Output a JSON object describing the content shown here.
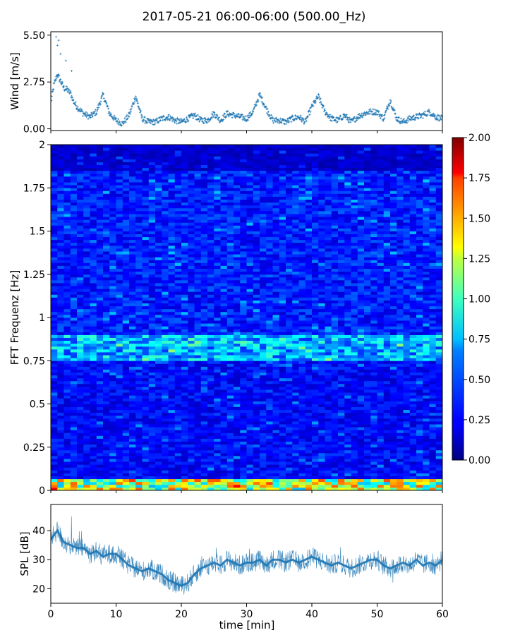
{
  "title": "2017-05-21 06:00-06:00 (500.00_Hz)",
  "chart_data": [
    {
      "panel": "wind",
      "type": "scatter",
      "ylabel": "Wind [m/s]",
      "ylim": [
        -0.1,
        5.7
      ],
      "yticks": [
        0.0,
        2.75,
        5.5
      ],
      "ytick_labels": [
        "0.00",
        "2.75",
        "5.50"
      ],
      "xlim": [
        0,
        60
      ],
      "color": "#1f77b4",
      "marker": "+",
      "x": [
        0,
        0.5,
        1,
        1.5,
        2,
        2.5,
        3,
        3.5,
        4,
        5,
        6,
        7,
        8,
        9,
        10,
        11,
        12,
        13,
        14,
        15,
        16,
        17,
        18,
        19,
        20,
        21,
        22,
        23,
        24,
        25,
        26,
        27,
        28,
        29,
        30,
        31,
        32,
        33,
        34,
        35,
        36,
        37,
        38,
        39,
        40,
        41,
        42,
        43,
        44,
        45,
        46,
        47,
        48,
        49,
        50,
        51,
        52,
        53,
        54,
        55,
        56,
        57,
        58,
        59,
        60
      ],
      "y": [
        1.6,
        2.6,
        3.2,
        2.8,
        2.4,
        2.3,
        2.1,
        1.6,
        1.3,
        0.9,
        0.7,
        1.0,
        2.0,
        0.9,
        0.5,
        0.3,
        0.8,
        1.9,
        0.6,
        0.4,
        0.4,
        0.6,
        0.7,
        0.5,
        0.4,
        0.6,
        0.8,
        0.5,
        0.5,
        0.9,
        0.5,
        0.9,
        0.8,
        0.7,
        0.6,
        1.0,
        2.0,
        1.2,
        0.5,
        0.5,
        0.4,
        0.6,
        0.7,
        0.4,
        1.3,
        1.9,
        1.0,
        0.6,
        0.5,
        0.8,
        0.4,
        0.7,
        0.9,
        1.0,
        1.0,
        0.6,
        1.7,
        0.6,
        0.4,
        0.6,
        0.7,
        0.8,
        1.0,
        0.7,
        0.6
      ]
    },
    {
      "panel": "spectrogram",
      "type": "heatmap",
      "ylabel": "FFT Frequenz [Hz]",
      "ylim": [
        0,
        2
      ],
      "yticks": [
        "0",
        "0.25",
        "0.5",
        "0.75",
        "1",
        "1.25",
        "1.5",
        "1.75",
        "2"
      ],
      "xlim": [
        0,
        60
      ],
      "colormap": "jet",
      "colorbar": {
        "range": [
          0.0,
          2.0
        ],
        "ticks": [
          "0.00",
          "0.25",
          "0.50",
          "0.75",
          "1.00",
          "1.25",
          "1.50",
          "1.75",
          "2.00"
        ]
      },
      "bands": [
        {
          "freq_range": [
            0.0,
            0.06
          ],
          "level": 1.1
        },
        {
          "freq_range": [
            0.75,
            0.9
          ],
          "level": 0.6
        },
        {
          "freq_range": [
            0.9,
            1.85
          ],
          "level": 0.3
        },
        {
          "freq_range": [
            0.06,
            0.75
          ],
          "level": 0.25
        }
      ]
    },
    {
      "panel": "spl",
      "type": "line",
      "ylabel": "SPL [dB]",
      "xlabel": "time [min]",
      "ylim": [
        15,
        49
      ],
      "yticks": [
        20,
        30,
        40
      ],
      "xlim": [
        0,
        60
      ],
      "xticks": [
        0,
        10,
        20,
        30,
        40,
        50,
        60
      ],
      "color": "#1f77b4",
      "x": [
        0,
        1,
        2,
        3,
        4,
        5,
        6,
        7,
        8,
        9,
        10,
        11,
        12,
        13,
        14,
        15,
        16,
        17,
        18,
        19,
        20,
        21,
        22,
        23,
        24,
        25,
        26,
        27,
        28,
        29,
        30,
        31,
        32,
        33,
        34,
        35,
        36,
        37,
        38,
        39,
        40,
        41,
        42,
        43,
        44,
        45,
        46,
        47,
        48,
        49,
        50,
        51,
        52,
        53,
        54,
        55,
        56,
        57,
        58,
        59,
        60
      ],
      "y": [
        37,
        40,
        36,
        35,
        34,
        34,
        32,
        33,
        31,
        32,
        32,
        30,
        28,
        27,
        26,
        27,
        26,
        25,
        23,
        22,
        21,
        22,
        25,
        27,
        28,
        29,
        28,
        30,
        29,
        28,
        29,
        29,
        30,
        28,
        30,
        30,
        29,
        30,
        29,
        30,
        31,
        30,
        29,
        28,
        29,
        28,
        27,
        28,
        29,
        30,
        30,
        28,
        27,
        28,
        29,
        28,
        30,
        28,
        29,
        28,
        30
      ]
    }
  ]
}
